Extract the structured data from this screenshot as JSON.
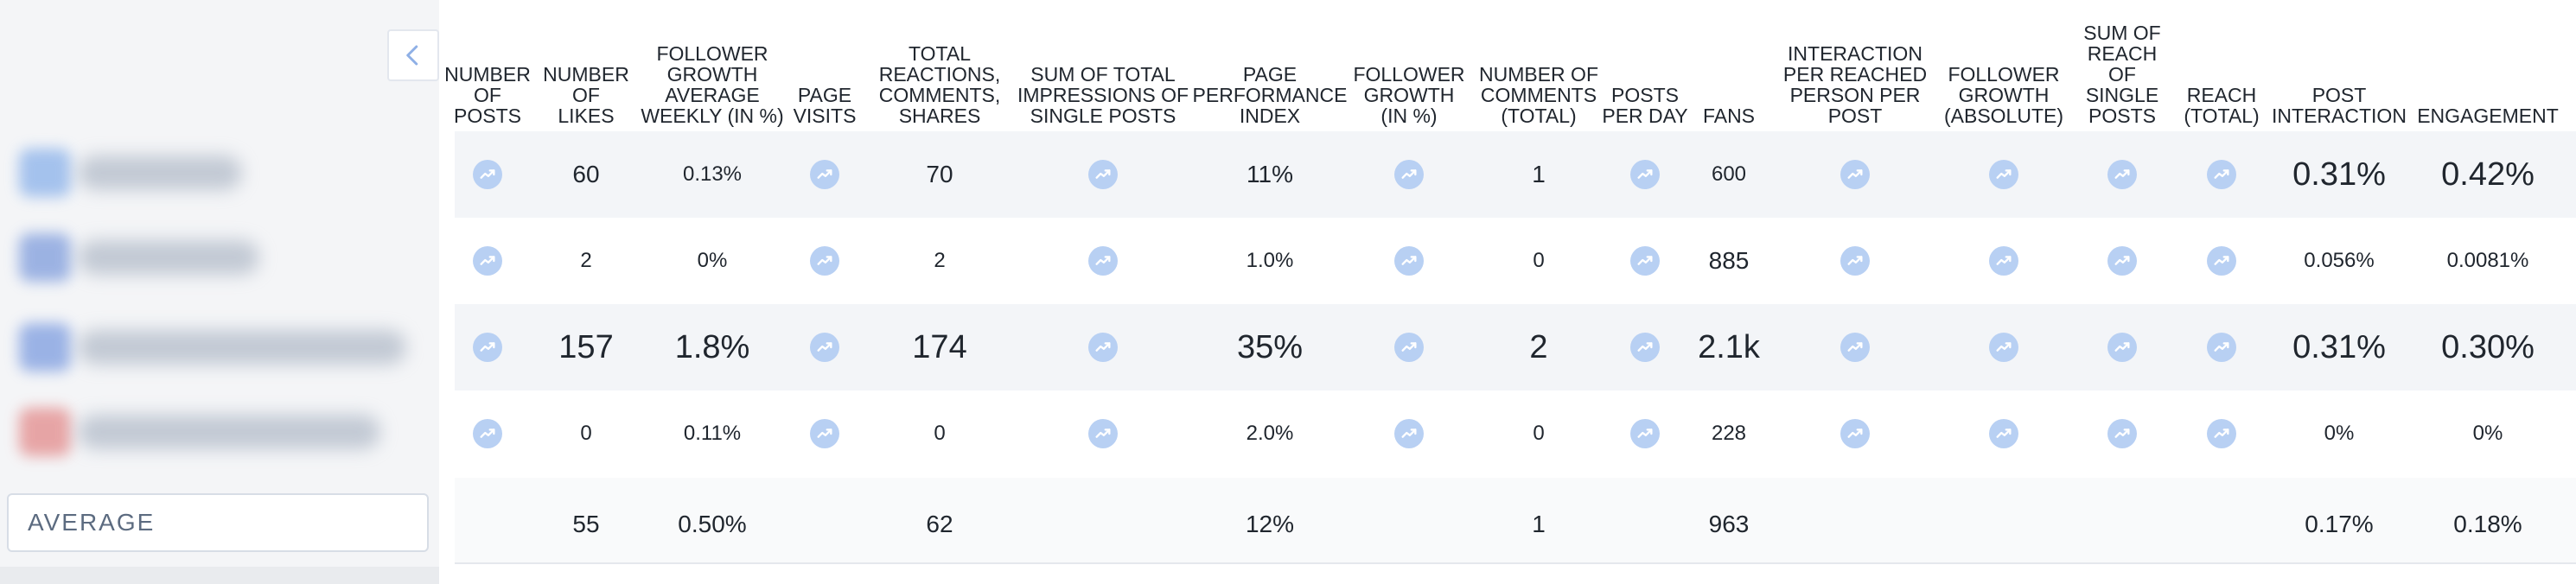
{
  "sidebar": {
    "average_label": "AVERAGE",
    "rows": [
      {
        "blur_color": "#7aa7e8"
      },
      {
        "blur_color": "#6d8fd8"
      },
      {
        "blur_color": "#6b8fdc"
      },
      {
        "blur_color": "#e07a7a"
      }
    ]
  },
  "icons": {
    "collapse": "chevron-left-icon",
    "trend": "trend-chart-icon"
  },
  "colors": {
    "accent": "#b8d0f3",
    "row_shade": "#f3f5f8"
  },
  "columns": [
    {
      "key": "posts",
      "label": "NUMBER OF POSTS"
    },
    {
      "key": "likes",
      "label": "NUMBER OF LIKES"
    },
    {
      "key": "follower_growth_weekly",
      "label": "FOLLOWER GROWTH AVERAGE WEEKLY (IN %)"
    },
    {
      "key": "page_visits",
      "label": "PAGE VISITS"
    },
    {
      "key": "total_reactions",
      "label": "TOTAL REACTIONS, COMMENTS, SHARES"
    },
    {
      "key": "sum_impressions",
      "label": "SUM OF TOTAL IMPRESSIONS OF SINGLE POSTS"
    },
    {
      "key": "ppi",
      "label": "PAGE PERFORMANCE INDEX"
    },
    {
      "key": "follower_growth_pct",
      "label": "FOLLOWER GROWTH (IN %)"
    },
    {
      "key": "comments",
      "label": "NUMBER OF COMMENTS (TOTAL)"
    },
    {
      "key": "posts_per_day",
      "label": "POSTS PER DAY"
    },
    {
      "key": "fans",
      "label": "FANS"
    },
    {
      "key": "interaction_per_reached",
      "label": "INTERACTION PER REACHED PERSON PER POST"
    },
    {
      "key": "follower_growth_abs",
      "label": "FOLLOWER GROWTH (ABSOLUTE)"
    },
    {
      "key": "sum_reach",
      "label": "SUM OF REACH OF SINGLE POSTS"
    },
    {
      "key": "reach_total",
      "label": "REACH (TOTAL)"
    },
    {
      "key": "post_interaction",
      "label": "POST INTERACTION"
    },
    {
      "key": "engagement",
      "label": "ENGAGEMENT"
    }
  ],
  "rows": [
    {
      "posts": "",
      "likes": "60",
      "follower_growth_weekly": "0.13%",
      "page_visits": "",
      "total_reactions": "70",
      "sum_impressions": "",
      "ppi": "11%",
      "follower_growth_pct": "",
      "comments": "1",
      "posts_per_day": "",
      "fans": "600",
      "interaction_per_reached": "",
      "follower_growth_abs": "",
      "sum_reach": "",
      "reach_total": "",
      "post_interaction": "0.31%",
      "engagement": "0.42%"
    },
    {
      "posts": "",
      "likes": "2",
      "follower_growth_weekly": "0%",
      "page_visits": "",
      "total_reactions": "2",
      "sum_impressions": "",
      "ppi": "1.0%",
      "follower_growth_pct": "",
      "comments": "0",
      "posts_per_day": "",
      "fans": "885",
      "interaction_per_reached": "",
      "follower_growth_abs": "",
      "sum_reach": "",
      "reach_total": "",
      "post_interaction": "0.056%",
      "engagement": "0.0081%"
    },
    {
      "posts": "",
      "likes": "157",
      "follower_growth_weekly": "1.8%",
      "page_visits": "",
      "total_reactions": "174",
      "sum_impressions": "",
      "ppi": "35%",
      "follower_growth_pct": "",
      "comments": "2",
      "posts_per_day": "",
      "fans": "2.1k",
      "interaction_per_reached": "",
      "follower_growth_abs": "",
      "sum_reach": "",
      "reach_total": "",
      "post_interaction": "0.31%",
      "engagement": "0.30%"
    },
    {
      "posts": "",
      "likes": "0",
      "follower_growth_weekly": "0.11%",
      "page_visits": "",
      "total_reactions": "0",
      "sum_impressions": "",
      "ppi": "2.0%",
      "follower_growth_pct": "",
      "comments": "0",
      "posts_per_day": "",
      "fans": "228",
      "interaction_per_reached": "",
      "follower_growth_abs": "",
      "sum_reach": "",
      "reach_total": "",
      "post_interaction": "0%",
      "engagement": "0%"
    }
  ],
  "average": {
    "posts": "",
    "likes": "55",
    "follower_growth_weekly": "0.50%",
    "page_visits": "",
    "total_reactions": "62",
    "sum_impressions": "",
    "ppi": "12%",
    "follower_growth_pct": "",
    "comments": "1",
    "posts_per_day": "",
    "fans": "963",
    "interaction_per_reached": "",
    "follower_growth_abs": "",
    "sum_reach": "",
    "reach_total": "",
    "post_interaction": "0.17%",
    "engagement": "0.18%"
  }
}
